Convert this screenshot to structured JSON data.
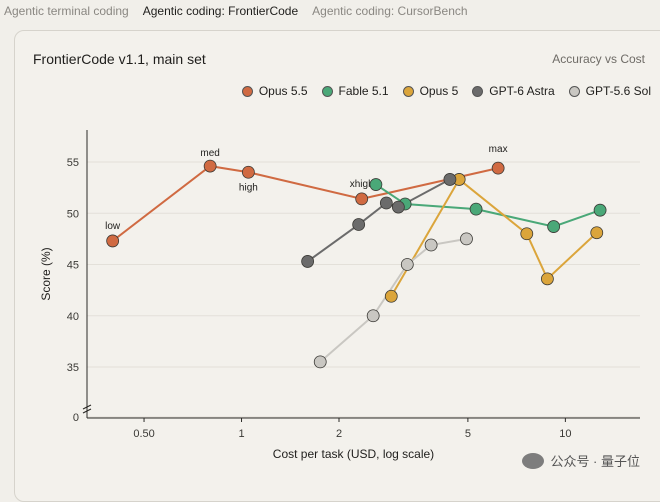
{
  "tabs": [
    {
      "label": "Agentic terminal coding",
      "active": false
    },
    {
      "label": "Agentic coding: FrontierCode",
      "active": true
    },
    {
      "label": "Agentic coding: CursorBench",
      "active": false
    }
  ],
  "card": {
    "title": "FrontierCode v1.1, main set",
    "subtitle": "Accuracy vs Cost"
  },
  "watermark": "公众号 · 量子位",
  "chart_data": {
    "type": "scatter",
    "xlabel": "Cost per task (USD, log scale)",
    "ylabel": "Score (%)",
    "x_scale": "log",
    "x_ticks": [
      {
        "value": 0.5,
        "label": "0.50"
      },
      {
        "value": 1,
        "label": "1"
      },
      {
        "value": 2,
        "label": "2"
      },
      {
        "value": 5,
        "label": "5"
      },
      {
        "value": 10,
        "label": "10"
      }
    ],
    "y_ticks": [
      {
        "value": 0,
        "label": "0"
      },
      {
        "value": 35,
        "label": "35"
      },
      {
        "value": 40,
        "label": "40"
      },
      {
        "value": 45,
        "label": "45"
      },
      {
        "value": 50,
        "label": "50"
      },
      {
        "value": 55,
        "label": "55"
      }
    ],
    "y_axis_break": true,
    "legend_position": "top-right",
    "series": [
      {
        "name": "Opus 5.5",
        "color": "#d06a42",
        "points": [
          {
            "x": 0.4,
            "y": 47.3,
            "label": "low"
          },
          {
            "x": 0.8,
            "y": 54.6,
            "label": "med"
          },
          {
            "x": 1.05,
            "y": 54.0,
            "label": "high"
          },
          {
            "x": 2.35,
            "y": 51.4,
            "label": "xhigh"
          },
          {
            "x": 6.2,
            "y": 54.4,
            "label": "max"
          }
        ]
      },
      {
        "name": "Fable 5.1",
        "color": "#4aa878",
        "points": [
          {
            "x": 2.6,
            "y": 52.8
          },
          {
            "x": 3.2,
            "y": 50.9
          },
          {
            "x": 5.3,
            "y": 50.4
          },
          {
            "x": 9.2,
            "y": 48.7
          },
          {
            "x": 12.8,
            "y": 50.3
          }
        ]
      },
      {
        "name": "Opus 5",
        "color": "#dba53b",
        "points": [
          {
            "x": 2.9,
            "y": 41.9
          },
          {
            "x": 4.7,
            "y": 53.3
          },
          {
            "x": 7.6,
            "y": 48.0
          },
          {
            "x": 8.8,
            "y": 43.6
          },
          {
            "x": 12.5,
            "y": 48.1
          }
        ]
      },
      {
        "name": "GPT-6 Astra",
        "color": "#6b6b6b",
        "points": [
          {
            "x": 1.6,
            "y": 45.3
          },
          {
            "x": 2.3,
            "y": 48.9
          },
          {
            "x": 2.8,
            "y": 51.0
          },
          {
            "x": 3.05,
            "y": 50.6
          },
          {
            "x": 4.4,
            "y": 53.3
          }
        ]
      },
      {
        "name": "GPT-5.6 Sol",
        "color": "#c9c7c2",
        "points": [
          {
            "x": 1.75,
            "y": 35.5
          },
          {
            "x": 2.55,
            "y": 40.0
          },
          {
            "x": 3.25,
            "y": 45.0
          },
          {
            "x": 3.85,
            "y": 46.9
          },
          {
            "x": 4.95,
            "y": 47.5
          }
        ]
      }
    ]
  }
}
